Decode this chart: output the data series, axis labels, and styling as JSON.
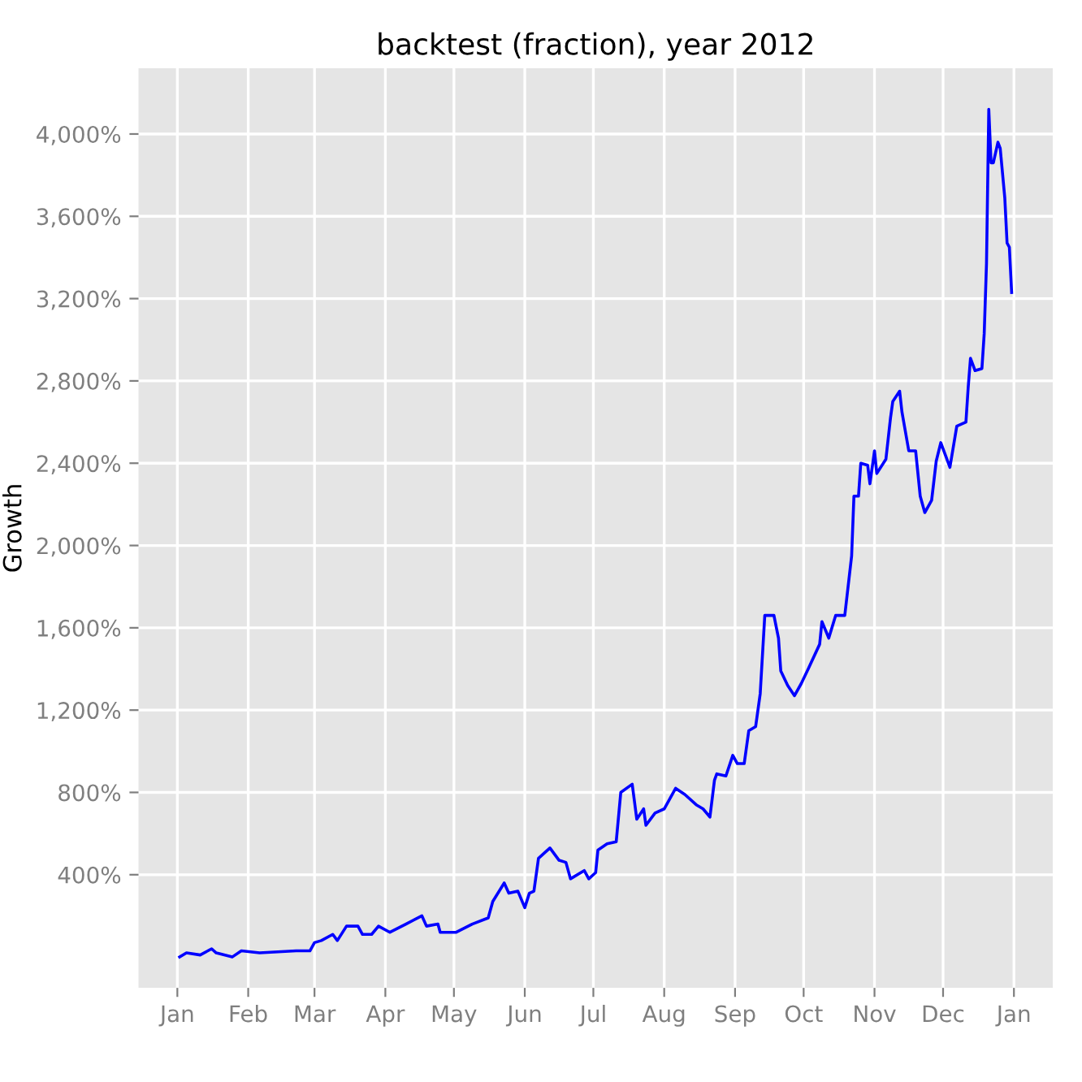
{
  "chart_data": {
    "type": "line",
    "title": "backtest (fraction), year 2012",
    "ylabel": "Growth",
    "x": [
      "2012-01-02",
      "2012-01-05",
      "2012-01-11",
      "2012-01-16",
      "2012-01-18",
      "2012-01-25",
      "2012-01-29",
      "2012-02-06",
      "2012-02-22",
      "2012-02-28",
      "2012-03-01",
      "2012-03-04",
      "2012-03-09",
      "2012-03-11",
      "2012-03-15",
      "2012-03-20",
      "2012-03-22",
      "2012-03-26",
      "2012-03-29",
      "2012-04-03",
      "2012-04-10",
      "2012-04-17",
      "2012-04-19",
      "2012-04-24",
      "2012-04-25",
      "2012-05-02",
      "2012-05-09",
      "2012-05-16",
      "2012-05-18",
      "2012-05-23",
      "2012-05-25",
      "2012-05-29",
      "2012-06-01",
      "2012-06-03",
      "2012-06-05",
      "2012-06-07",
      "2012-06-12",
      "2012-06-16",
      "2012-06-19",
      "2012-06-21",
      "2012-06-27",
      "2012-06-29",
      "2012-07-02",
      "2012-07-03",
      "2012-07-07",
      "2012-07-11",
      "2012-07-13",
      "2012-07-18",
      "2012-07-20",
      "2012-07-23",
      "2012-07-24",
      "2012-07-28",
      "2012-08-01",
      "2012-08-06",
      "2012-08-10",
      "2012-08-15",
      "2012-08-18",
      "2012-08-21",
      "2012-08-23",
      "2012-08-24",
      "2012-08-28",
      "2012-08-31",
      "2012-09-02",
      "2012-09-05",
      "2012-09-07",
      "2012-09-10",
      "2012-09-12",
      "2012-09-14",
      "2012-09-18",
      "2012-09-20",
      "2012-09-21",
      "2012-09-24",
      "2012-09-27",
      "2012-09-30",
      "2012-10-03",
      "2012-10-08",
      "2012-10-09",
      "2012-10-12",
      "2012-10-15",
      "2012-10-19",
      "2012-10-22",
      "2012-10-23",
      "2012-10-25",
      "2012-10-26",
      "2012-10-29",
      "2012-10-30",
      "2012-11-01",
      "2012-11-02",
      "2012-11-06",
      "2012-11-08",
      "2012-11-09",
      "2012-11-12",
      "2012-11-13",
      "2012-11-16",
      "2012-11-19",
      "2012-11-21",
      "2012-11-23",
      "2012-11-26",
      "2012-11-28",
      "2012-11-30",
      "2012-12-02",
      "2012-12-04",
      "2012-12-07",
      "2012-12-11",
      "2012-12-12",
      "2012-12-13",
      "2012-12-15",
      "2012-12-18",
      "2012-12-19",
      "2012-12-20",
      "2012-12-21",
      "2012-12-22",
      "2012-12-23",
      "2012-12-25",
      "2012-12-26",
      "2012-12-28",
      "2012-12-29",
      "2012-12-30",
      "2012-12-31"
    ],
    "series": [
      {
        "color": "#0000ff",
        "values": [
          0,
          20,
          10,
          40,
          20,
          0,
          30,
          20,
          30,
          30,
          70,
          80,
          110,
          80,
          150,
          150,
          110,
          110,
          150,
          120,
          160,
          200,
          150,
          160,
          120,
          120,
          160,
          190,
          270,
          360,
          310,
          320,
          240,
          310,
          320,
          480,
          530,
          470,
          460,
          380,
          420,
          380,
          410,
          520,
          550,
          560,
          800,
          840,
          670,
          720,
          640,
          700,
          720,
          820,
          790,
          740,
          720,
          680,
          860,
          890,
          880,
          980,
          940,
          940,
          1100,
          1120,
          1280,
          1660,
          1660,
          1550,
          1390,
          1320,
          1270,
          1330,
          1400,
          1520,
          1630,
          1550,
          1660,
          1660,
          1950,
          2240,
          2240,
          2400,
          2390,
          2300,
          2460,
          2350,
          2420,
          2620,
          2700,
          2750,
          2650,
          2460,
          2460,
          2240,
          2160,
          2220,
          2410,
          2500,
          2440,
          2380,
          2580,
          2600,
          2770,
          2910,
          2850,
          2860,
          3030,
          3370,
          4120,
          3860,
          3860,
          3960,
          3930,
          3690,
          3470,
          3450,
          3230
        ]
      }
    ],
    "xlim": [
      "2011-12-15",
      "2013-01-18"
    ],
    "xticks": [
      {
        "value": "2012-01-01",
        "label": "Jan"
      },
      {
        "value": "2012-02-01",
        "label": "Feb"
      },
      {
        "value": "2012-03-01",
        "label": "Mar"
      },
      {
        "value": "2012-04-01",
        "label": "Apr"
      },
      {
        "value": "2012-05-01",
        "label": "May"
      },
      {
        "value": "2012-06-01",
        "label": "Jun"
      },
      {
        "value": "2012-07-01",
        "label": "Jul"
      },
      {
        "value": "2012-08-01",
        "label": "Aug"
      },
      {
        "value": "2012-09-01",
        "label": "Sep"
      },
      {
        "value": "2012-10-01",
        "label": "Oct"
      },
      {
        "value": "2012-11-01",
        "label": "Nov"
      },
      {
        "value": "2012-12-01",
        "label": "Dec"
      },
      {
        "value": "2013-01-01",
        "label": "Jan"
      }
    ],
    "ylim": [
      -150,
      4320
    ],
    "yticks": [
      {
        "value": 400,
        "label": "400%"
      },
      {
        "value": 800,
        "label": "800%"
      },
      {
        "value": 1200,
        "label": "1,200%"
      },
      {
        "value": 1600,
        "label": "1,600%"
      },
      {
        "value": 2000,
        "label": "2,000%"
      },
      {
        "value": 2400,
        "label": "2,400%"
      },
      {
        "value": 2800,
        "label": "2,800%"
      },
      {
        "value": 3200,
        "label": "3,200%"
      },
      {
        "value": 3600,
        "label": "3,600%"
      },
      {
        "value": 4000,
        "label": "4,000%"
      }
    ],
    "grid": true,
    "line_style": "solid"
  }
}
